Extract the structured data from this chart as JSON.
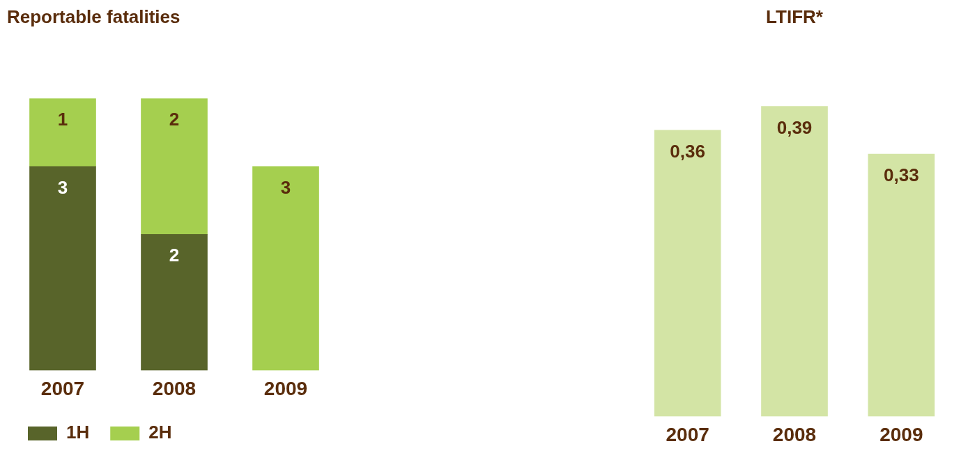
{
  "chart_data": [
    {
      "type": "bar",
      "title": "Reportable fatalities",
      "categories": [
        "2007",
        "2008",
        "2009"
      ],
      "stacked": true,
      "data_labels": true,
      "legend": "bottom left",
      "series": [
        {
          "name": "1H",
          "color": "#58642a",
          "values": [
            3,
            2,
            null
          ]
        },
        {
          "name": "2H",
          "color": "#a5cf4f",
          "values": [
            1,
            2,
            3
          ]
        }
      ]
    },
    {
      "type": "bar",
      "title": "LTIFR*",
      "categories": [
        "2007",
        "2008",
        "2009"
      ],
      "color": "#d3e4a5",
      "values": [
        0.36,
        0.39,
        0.33
      ],
      "value_labels": [
        "0,36",
        "0,39",
        "0,33"
      ]
    }
  ]
}
